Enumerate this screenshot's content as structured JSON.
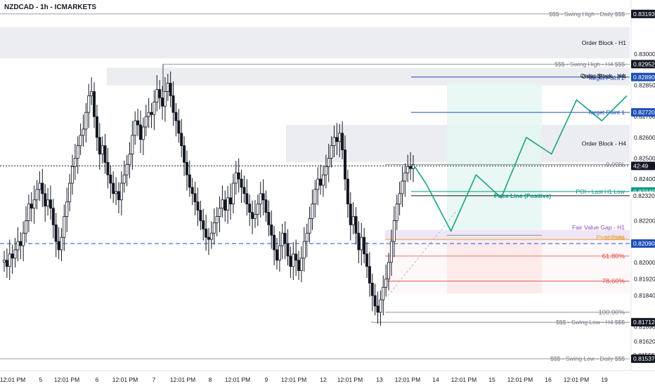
{
  "header": {
    "symbol_title": "NZDCAD - 1h - ICMARKETS"
  },
  "colors": {
    "up": "#ffffff",
    "down": "#131722",
    "wick": "#131722",
    "zone_gray": "#ebedf0",
    "zone_blue": "#e6f2f8",
    "zone_teal": "#e3f6f3",
    "zone_red": "#fdeaea",
    "zone_purple": "#efe6f5",
    "blue_line": "#1d4fb5",
    "green_line": "#089981",
    "red_fib": "#e04747",
    "purple": "#8a4fb0",
    "orange": "#e8a23b",
    "gray_line": "#787b86"
  },
  "chart_data": {
    "type": "candlestick",
    "symbol": "NZDCAD",
    "timeframe": "1h",
    "broker": "ICMARKETS",
    "ylim": [
      0.8148,
      0.8326
    ],
    "y_ticks": [
      0.83,
      0.8285,
      0.827,
      0.826,
      0.825,
      0.824,
      0.822,
      0.82,
      0.8192,
      0.8184,
      0.8169,
      0.8162
    ],
    "y_tick_labels": [
      "0.83000",
      "0.82850",
      "0.82700",
      "0.82600",
      "0.82500",
      "0.82400",
      "0.82200",
      "0.82000",
      "0.81920",
      "0.81840",
      "0.81690",
      "0.81620"
    ],
    "x_ticks": [
      "12:01 PM",
      "5",
      "12:01 PM",
      "6",
      "12:01 PM",
      "7",
      "12:01 PM",
      "8",
      "12:01 PM",
      "9",
      "12:01 PM",
      "12",
      "12:01 PM",
      "13",
      "12:01 PM",
      "14",
      "12:01 PM",
      "15",
      "12:01 PM",
      "16",
      "12:01 PM",
      "19"
    ],
    "current_price_countdown": "42:49",
    "price_badges": [
      {
        "label": "0.83193",
        "price": 0.83193,
        "style": "dark"
      },
      {
        "label": "0.82952",
        "price": 0.82952,
        "style": "dark"
      },
      {
        "label": "0.82890",
        "price": 0.8289,
        "style": "blue"
      },
      {
        "label": "0.82720",
        "price": 0.8272,
        "style": "blue"
      },
      {
        "label": "42:49",
        "price": 0.82463,
        "style": "dark"
      },
      {
        "label": "0.82340",
        "price": 0.8234,
        "style": "green"
      },
      {
        "label": "0.82320",
        "price": 0.8232,
        "style": "plain"
      },
      {
        "label": "0.82090",
        "price": 0.8209,
        "style": "blue"
      },
      {
        "label": "0.81712",
        "price": 0.81712,
        "style": "dark"
      },
      {
        "label": "0.81555",
        "price": 0.81555,
        "style": "plain"
      },
      {
        "label": "0.81537",
        "price": 0.81537,
        "style": "dark"
      }
    ],
    "levels": [
      {
        "label": "$$$ - Swing High - Daily $$$",
        "price": 0.83193
      },
      {
        "label": "$$$ - Swing High - H4 $$$",
        "price": 0.82952
      },
      {
        "label": "Order Block - H4",
        "price": 0.8289
      },
      {
        "label": "Target Point 2",
        "price": 0.8289
      },
      {
        "label": "Target Point 1",
        "price": 0.8272
      },
      {
        "label": "POI - Last H1 Low",
        "price": 0.8234
      },
      {
        "label": "Price Line (Positive)",
        "price": 0.8232
      },
      {
        "label": "Fair Value Gap - H1",
        "price": 0.82155
      },
      {
        "label": "Pivot Point",
        "price": 0.8211
      },
      {
        "label": "50.00%",
        "price": 0.82127
      },
      {
        "label": "$$$ - Swing Low - H4 $$$",
        "price": 0.81712
      },
      {
        "label": "$$$ - Swing Low - Daily $$$",
        "price": 0.81537
      }
    ],
    "zones": [
      {
        "label": "Order Block - H1",
        "top": 0.8313,
        "bottom": 0.8298
      },
      {
        "label": "Order Block - H4",
        "top": 0.82935,
        "bottom": 0.8285
      },
      {
        "label": "Order Block - H4",
        "top": 0.8266,
        "bottom": 0.8248
      }
    ],
    "fib_levels": [
      {
        "label": "0.00%",
        "price": 0.8247
      },
      {
        "label": "61.80%",
        "price": 0.8203
      },
      {
        "label": "78.60%",
        "price": 0.8191
      },
      {
        "label": "100.00%",
        "price": 0.8176
      }
    ],
    "fib_range": {
      "high": 0.8247,
      "low": 0.8176
    },
    "projection_path": [
      0.8238,
      0.8215,
      0.8242,
      0.8231,
      0.826,
      0.8252,
      0.8278,
      0.8268,
      0.828
    ],
    "candles_ohlc_start": 0.82,
    "candles_close": [
      0.8201,
      0.8198,
      0.8204,
      0.8202,
      0.8206,
      0.821,
      0.8208,
      0.8214,
      0.822,
      0.8228,
      0.8226,
      0.823,
      0.8235,
      0.8238,
      0.8233,
      0.8227,
      0.823,
      0.8226,
      0.8218,
      0.821,
      0.8206,
      0.8212,
      0.8222,
      0.8229,
      0.8238,
      0.8246,
      0.825,
      0.8256,
      0.8261,
      0.8264,
      0.8272,
      0.828,
      0.8282,
      0.827,
      0.826,
      0.8252,
      0.8256,
      0.8248,
      0.8242,
      0.8238,
      0.8233,
      0.8234,
      0.823,
      0.8238,
      0.8242,
      0.8247,
      0.8252,
      0.8261,
      0.8268,
      0.8266,
      0.8259,
      0.8265,
      0.827,
      0.8272,
      0.8271,
      0.8277,
      0.8283,
      0.8279,
      0.8275,
      0.8282,
      0.8286,
      0.828,
      0.8272,
      0.8268,
      0.8262,
      0.8256,
      0.8248,
      0.8242,
      0.8236,
      0.8233,
      0.8229,
      0.8225,
      0.822,
      0.8216,
      0.8212,
      0.8211,
      0.8214,
      0.8219,
      0.8222,
      0.8226,
      0.823,
      0.8225,
      0.8231,
      0.8228,
      0.8238,
      0.8243,
      0.824,
      0.8236,
      0.8233,
      0.8228,
      0.8224,
      0.8221,
      0.8223,
      0.8228,
      0.8233,
      0.823,
      0.8224,
      0.8218,
      0.8213,
      0.8206,
      0.8201,
      0.8208,
      0.8214,
      0.8209,
      0.8203,
      0.8198,
      0.8204,
      0.8201,
      0.8196,
      0.8202,
      0.821,
      0.8214,
      0.8221,
      0.8228,
      0.8235,
      0.824,
      0.8237,
      0.8242,
      0.8246,
      0.825,
      0.8256,
      0.826,
      0.8258,
      0.8262,
      0.8254,
      0.824,
      0.8228,
      0.8218,
      0.8222,
      0.8214,
      0.8206,
      0.8212,
      0.8204,
      0.8198,
      0.819,
      0.8184,
      0.8179,
      0.8176,
      0.8182,
      0.8188,
      0.8192,
      0.82,
      0.821,
      0.822,
      0.8228,
      0.8233,
      0.8239,
      0.8243,
      0.8246,
      0.8245,
      0.8247
    ]
  }
}
